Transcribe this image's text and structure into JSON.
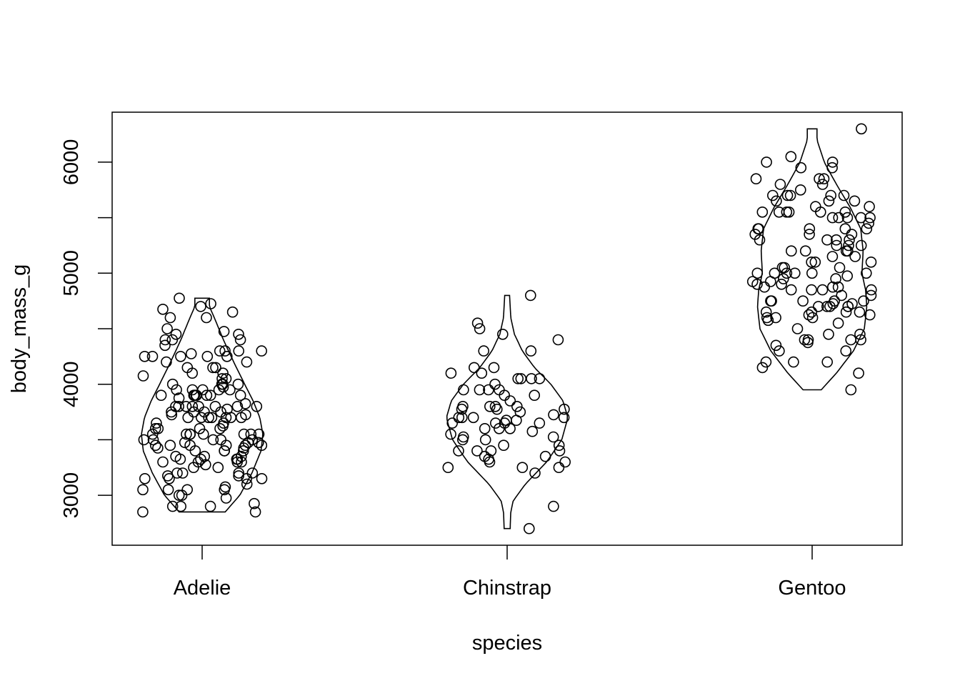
{
  "chart_data": {
    "type": "violin",
    "xlabel": "species",
    "ylabel": "body_mass_g",
    "ylim": [
      2550,
      6450
    ],
    "yticks": [
      3000,
      3500,
      4000,
      4500,
      5000,
      5500,
      6000
    ],
    "ytick_labels": [
      "3000",
      "",
      "4000",
      "",
      "5000",
      "",
      "6000"
    ],
    "grid": false,
    "legend": "none",
    "categories": [
      "Adelie",
      "Chinstrap",
      "Gentoo"
    ],
    "series": [
      {
        "category": "Adelie",
        "violin": {
          "min": 2850,
          "max": 4775,
          "profile": [
            [
              2850,
              0.38
            ],
            [
              3000,
              0.62
            ],
            [
              3200,
              0.82
            ],
            [
              3400,
              0.97
            ],
            [
              3550,
              1.0
            ],
            [
              3700,
              0.95
            ],
            [
              3850,
              0.84
            ],
            [
              4000,
              0.7
            ],
            [
              4200,
              0.52
            ],
            [
              4400,
              0.35
            ],
            [
              4600,
              0.2
            ],
            [
              4700,
              0.12
            ],
            [
              4775,
              0.12
            ]
          ]
        },
        "points": [
          3750,
          3800,
          3250,
          3450,
          3650,
          3625,
          4675,
          3475,
          4250,
          3300,
          3700,
          3200,
          3800,
          4400,
          3700,
          3450,
          4500,
          3325,
          4200,
          3400,
          3600,
          3800,
          3950,
          3800,
          3800,
          3550,
          3200,
          3150,
          3950,
          3250,
          3900,
          3300,
          3900,
          3325,
          4150,
          3950,
          3550,
          3300,
          4650,
          3150,
          3900,
          3100,
          4400,
          3000,
          4600,
          3425,
          2975,
          3450,
          4150,
          3500,
          4300,
          3450,
          4050,
          2900,
          3700,
          3550,
          3800,
          2850,
          3750,
          3150,
          4400,
          3600,
          4050,
          2850,
          3950,
          3350,
          4100,
          3050,
          4450,
          3600,
          3900,
          3550,
          4150,
          3700,
          4250,
          3700,
          3900,
          3550,
          4000,
          3200,
          4700,
          3800,
          4200,
          3350,
          3550,
          3800,
          3500,
          3950,
          3600,
          3550,
          4300,
          3400,
          4450,
          3300,
          4300,
          3700,
          4350,
          2900,
          4100,
          3725,
          4725,
          3075,
          4250,
          2925,
          3550,
          3750,
          3900,
          3175,
          4775,
          3825,
          4600,
          3200,
          4275,
          3900,
          4075,
          2900,
          3775,
          3350,
          3325,
          3150,
          3500,
          3450,
          3875,
          3050,
          4000,
          3275,
          4300,
          3050,
          4000,
          3325,
          3500,
          3500,
          4475,
          3425,
          3900,
          3175,
          3975,
          3400,
          4250,
          3400,
          3475,
          3050,
          3725,
          3000,
          3650,
          4250,
          3475,
          3450,
          3750,
          3700,
          4000
        ]
      },
      {
        "category": "Chinstrap",
        "violin": {
          "min": 2700,
          "max": 4800,
          "profile": [
            [
              2700,
              0.05
            ],
            [
              2850,
              0.06
            ],
            [
              2950,
              0.1
            ],
            [
              3100,
              0.3
            ],
            [
              3300,
              0.65
            ],
            [
              3500,
              0.9
            ],
            [
              3700,
              1.0
            ],
            [
              3850,
              0.92
            ],
            [
              4000,
              0.72
            ],
            [
              4150,
              0.45
            ],
            [
              4300,
              0.25
            ],
            [
              4450,
              0.12
            ],
            [
              4600,
              0.06
            ],
            [
              4800,
              0.04
            ]
          ]
        },
        "points": [
          3500,
          3900,
          3650,
          3525,
          3725,
          3950,
          3250,
          3750,
          4150,
          3700,
          3800,
          3775,
          3700,
          4050,
          3575,
          4050,
          3300,
          3700,
          3450,
          4400,
          3600,
          3400,
          2900,
          3800,
          3300,
          4150,
          3400,
          3800,
          3700,
          4550,
          3200,
          4300,
          3350,
          4100,
          3600,
          3900,
          3850,
          4800,
          2700,
          4500,
          3950,
          3650,
          3550,
          3500,
          3675,
          4450,
          3400,
          4300,
          3250,
          3675,
          3325,
          3950,
          3600,
          4050,
          3350,
          3450,
          3250,
          4050,
          3800,
          3525,
          3950,
          3650,
          3650,
          4000,
          3400,
          3775,
          4100,
          3775
        ]
      },
      {
        "category": "Gentoo",
        "violin": {
          "min": 3950,
          "max": 6300,
          "profile": [
            [
              3950,
              0.15
            ],
            [
              4100,
              0.4
            ],
            [
              4300,
              0.68
            ],
            [
              4500,
              0.86
            ],
            [
              4700,
              0.9
            ],
            [
              4850,
              0.88
            ],
            [
              5000,
              0.82
            ],
            [
              5200,
              0.84
            ],
            [
              5400,
              0.8
            ],
            [
              5600,
              0.62
            ],
            [
              5800,
              0.4
            ],
            [
              6000,
              0.2
            ],
            [
              6200,
              0.08
            ],
            [
              6300,
              0.08
            ]
          ]
        },
        "points": [
          4500,
          5700,
          4450,
          5700,
          5400,
          4550,
          4800,
          5200,
          4400,
          5150,
          4650,
          5550,
          4650,
          5850,
          4200,
          5850,
          4150,
          6300,
          4800,
          5350,
          5700,
          5000,
          4400,
          5050,
          5000,
          5100,
          4100,
          5650,
          4600,
          5550,
          5250,
          4700,
          5050,
          6050,
          5150,
          5400,
          4950,
          5250,
          4350,
          5350,
          3950,
          5700,
          4300,
          4750,
          5550,
          4900,
          4200,
          5400,
          5100,
          5300,
          4850,
          5300,
          4400,
          5000,
          4900,
          5050,
          4300,
          5000,
          4450,
          5550,
          4200,
          5300,
          4400,
          5650,
          4700,
          5700,
          4650,
          5800,
          4700,
          5550,
          4750,
          5000,
          5100,
          5200,
          4700,
          5800,
          4600,
          6000,
          4750,
          5950,
          4625,
          5450,
          4725,
          5350,
          4750,
          5600,
          4600,
          5300,
          4875,
          5550,
          4950,
          5400,
          4750,
          5650,
          4850,
          5200,
          4925,
          4875,
          4625,
          5250,
          4850,
          5600,
          4975,
          5500,
          4725,
          5500,
          4700,
          5500,
          4575,
          5500,
          5000,
          5950,
          4650,
          5500,
          4375,
          5850,
          4875,
          6000,
          4925,
          4850,
          5750,
          5200,
          5400
        ]
      }
    ]
  }
}
